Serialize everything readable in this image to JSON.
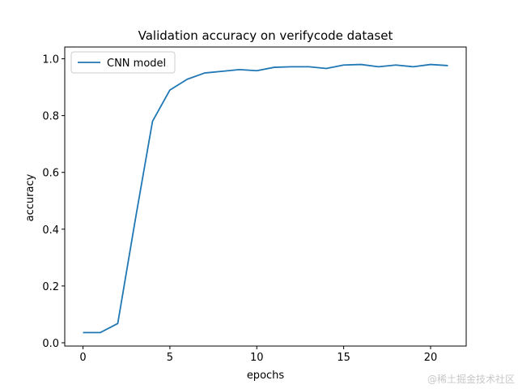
{
  "chart_data": {
    "type": "line",
    "title": "Validation accuracy on verifycode dataset",
    "xlabel": "epochs",
    "ylabel": "accuracy",
    "xlim": [
      -1.05,
      22.05
    ],
    "ylim": [
      -0.0115,
      1.0415
    ],
    "xticks": [
      0,
      5,
      10,
      15,
      20
    ],
    "xtick_labels": [
      "0",
      "5",
      "10",
      "15",
      "20"
    ],
    "yticks": [
      0.0,
      0.2,
      0.4,
      0.6,
      0.8,
      1.0
    ],
    "ytick_labels": [
      "0.0",
      "0.2",
      "0.4",
      "0.6",
      "0.8",
      "1.0"
    ],
    "grid": false,
    "legend_position": "upper-left",
    "series": [
      {
        "name": "CNN model",
        "color": "#1f77b4",
        "x": [
          0,
          1,
          2,
          3,
          4,
          5,
          6,
          7,
          8,
          9,
          10,
          11,
          12,
          13,
          14,
          15,
          16,
          17,
          18,
          19,
          20,
          21
        ],
        "y": [
          0.036,
          0.036,
          0.068,
          0.43,
          0.78,
          0.89,
          0.928,
          0.95,
          0.956,
          0.962,
          0.958,
          0.97,
          0.972,
          0.972,
          0.966,
          0.978,
          0.98,
          0.972,
          0.978,
          0.972,
          0.98,
          0.976
        ]
      }
    ]
  },
  "watermark": "@稀土掘金技术社区"
}
